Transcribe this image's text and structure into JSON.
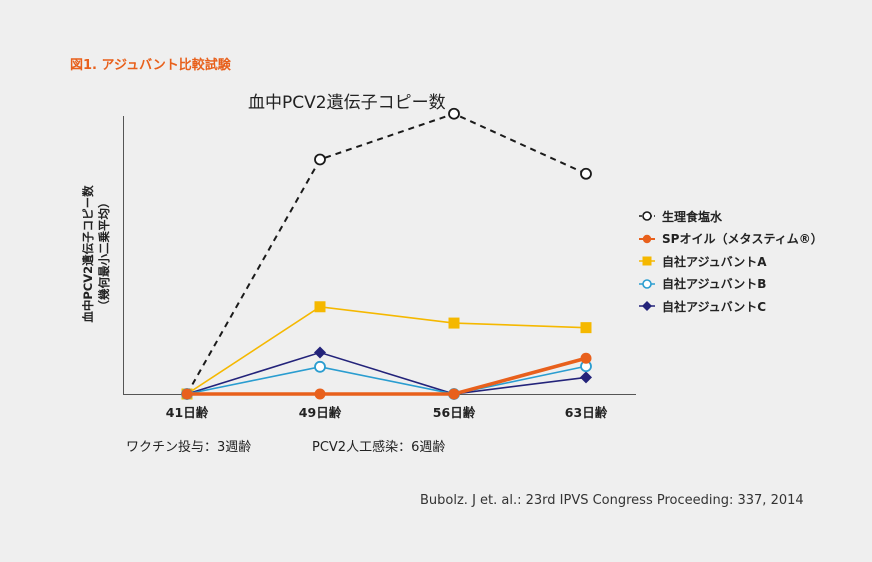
{
  "figure_label": "図1. アジュバント比較試験",
  "chart_data": {
    "type": "line",
    "title": "血中PCV2遺伝子コピー数",
    "ylabel": "血中PCV2遺伝子コピー数",
    "ylabel_sub": "（幾何最小二乗平均）",
    "xlabel": "",
    "categories": [
      "41日齢",
      "49日齢",
      "56日齢",
      "63日齢"
    ],
    "ylim": [
      0,
      100
    ],
    "grid": false,
    "legend_position": "right",
    "series": [
      {
        "name": "生理食塩水",
        "values": [
          0,
          82,
          98,
          77
        ],
        "color": "#1a1a1a",
        "marker": "circle-open",
        "dash": true
      },
      {
        "name": "自社アジュバントA",
        "values": [
          0,
          30.5,
          24.8,
          23.2
        ],
        "color": "#f5b800",
        "marker": "square"
      },
      {
        "name": "自社アジュバントC",
        "values": [
          0,
          14.5,
          0,
          5.8
        ],
        "color": "#23237a",
        "marker": "diamond"
      },
      {
        "name": "自社アジュバントB",
        "values": [
          0,
          9.5,
          0,
          9.7
        ],
        "color": "#2a9dd0",
        "marker": "circle-open"
      },
      {
        "name": "SPオイル（メタスティム®）",
        "values": [
          0,
          0,
          0,
          12.5
        ],
        "color": "#e8601c",
        "marker": "circle",
        "thick": true
      }
    ]
  },
  "legend_items": [
    {
      "label": "生理食塩水",
      "color": "#1a1a1a",
      "marker": "circle-open",
      "dash": true
    },
    {
      "label": "SPオイル（メタスティム®）",
      "color": "#e8601c",
      "marker": "circle"
    },
    {
      "label": "自社アジュバントA",
      "color": "#f5b800",
      "marker": "square"
    },
    {
      "label": "自社アジュバントB",
      "color": "#2a9dd0",
      "marker": "circle-open"
    },
    {
      "label": "自社アジュバントC",
      "color": "#23237a",
      "marker": "diamond"
    }
  ],
  "notes": {
    "vaccination": "ワクチン投与：3週齢",
    "infection": "PCV2人工感染：6週齢"
  },
  "citation": "Bubolz. J et. al.: 23rd IPVS Congress Proceeding: 337, 2014"
}
